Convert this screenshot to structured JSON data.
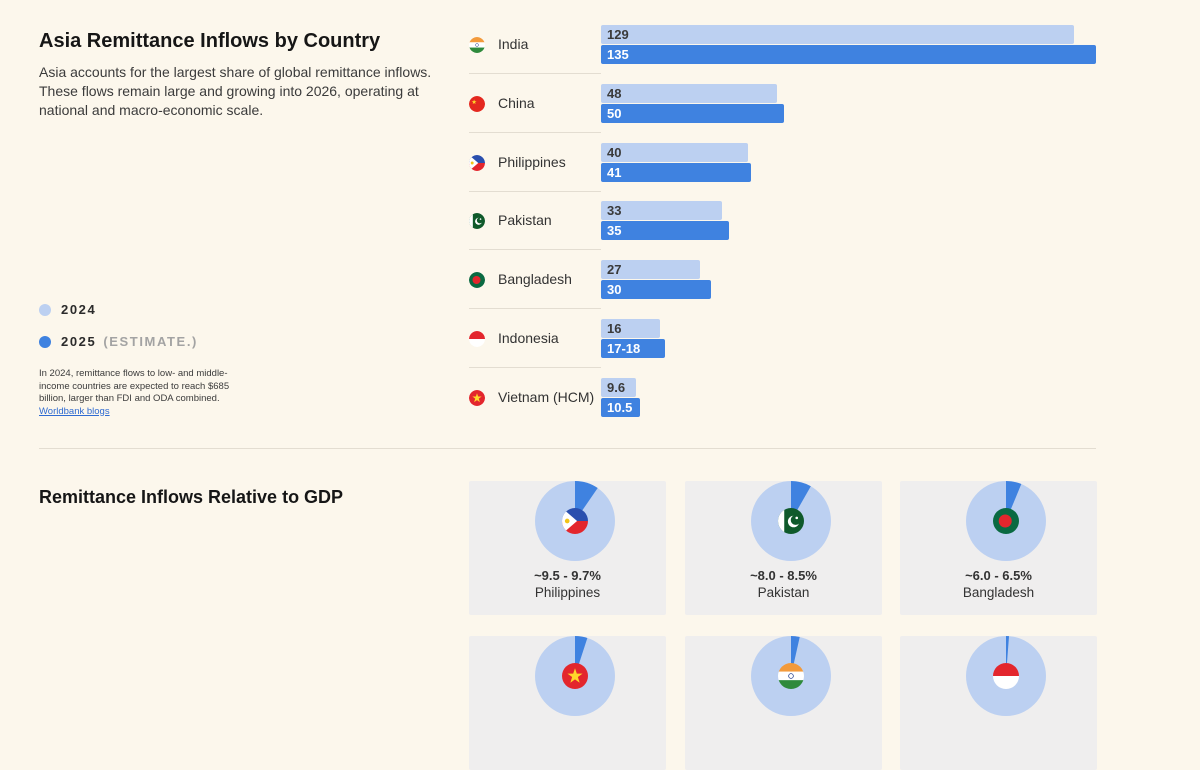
{
  "header": {
    "title": "Asia Remittance Inflows by Country",
    "description": "Asia accounts for the largest share of global remittance inflows. These flows remain large and growing into 2026, operating at national and macro-economic scale."
  },
  "legend": {
    "items": [
      {
        "label": "2024",
        "note": "",
        "color": "#bcd0f1"
      },
      {
        "label": "2025",
        "note": "(ESTIMATE.)",
        "color": "#3f82e0"
      }
    ]
  },
  "footnote": {
    "text": "In 2024, remittance flows to low- and middle-income countries are expected to reach $685 billion, larger than FDI and ODA combined. ",
    "link": "Worldbank blogs"
  },
  "chart_data": [
    {
      "type": "bar",
      "orientation": "horizontal",
      "title": "Asia Remittance Inflows by Country",
      "categories": [
        "India",
        "China",
        "Philippines",
        "Pakistan",
        "Bangladesh",
        "Indonesia",
        "Vietnam (HCM)"
      ],
      "flag_icons": [
        "india-flag-icon",
        "china-flag-icon",
        "philippines-flag-icon",
        "pakistan-flag-icon",
        "bangladesh-flag-icon",
        "indonesia-flag-icon",
        "vietnam-flag-icon"
      ],
      "series": [
        {
          "name": "2024",
          "color": "#bcd0f1",
          "values": [
            129,
            48,
            40,
            33,
            27,
            16,
            9.6
          ],
          "labels": [
            "129",
            "48",
            "40",
            "33",
            "27",
            "16",
            "9.6"
          ]
        },
        {
          "name": "2025",
          "color": "#3f82e0",
          "values": [
            135,
            50,
            41,
            35,
            30,
            17.5,
            10.5
          ],
          "labels": [
            "135",
            "50",
            "41",
            "35",
            "30",
            "17-18",
            "10.5"
          ]
        }
      ],
      "xlim": [
        0,
        135
      ]
    },
    {
      "type": "pie",
      "title": "Remittance Inflows Relative to GDP",
      "items": [
        {
          "country": "Philippines",
          "label": "~9.5 - 9.7%",
          "share": 0.096,
          "flag": "philippines-flag-icon"
        },
        {
          "country": "Pakistan",
          "label": "~8.0 - 8.5%",
          "share": 0.0825,
          "flag": "pakistan-flag-icon"
        },
        {
          "country": "Bangladesh",
          "label": "~6.0 - 6.5%",
          "share": 0.0625,
          "flag": "bangladesh-flag-icon"
        },
        {
          "country": "",
          "label": "",
          "share": 0.05,
          "flag": "vietnam-flag-icon"
        },
        {
          "country": "",
          "label": "",
          "share": 0.035,
          "flag": "india-flag-icon"
        },
        {
          "country": "",
          "label": "",
          "share": 0.012,
          "flag": "indonesia-flag-icon"
        }
      ],
      "colors": {
        "slice": "#3f82e0",
        "base": "#bcd0f1"
      }
    }
  ]
}
